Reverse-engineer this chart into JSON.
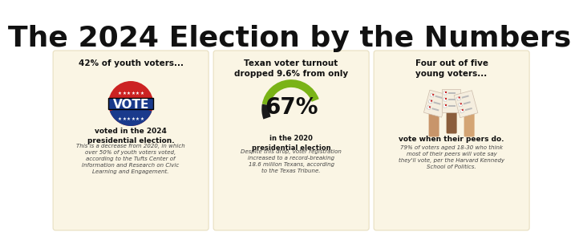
{
  "title": "The 2024 Election by the Numbers",
  "title_fontsize": 26,
  "bg_color": "#ffffff",
  "card_bg": "#faf5e4",
  "card_border": "#e8dfc0",
  "panel1": {
    "header": "42% of youth voters...",
    "bold_text": "voted in the 2024\npresidential election.",
    "body_text": "This is a decrease from 2020, in which\nover 50% of youth voters voted,\naccording to the Tufts Center of\nInformation and Research on Civic\nLearning and Engagement."
  },
  "panel2": {
    "header": "Texan voter turnout\ndropped 9.6% from only",
    "big_number": "67%",
    "sub_number": "in the 2020\npresidential election",
    "body_text": "Despite this drop, voter registration\nincreased to a record-breaking\n18.6 million Texans, according\nto the Texas Tribune.",
    "arc_color_green": "#7ab317",
    "arc_color_dark": "#1a1a1a"
  },
  "panel3": {
    "header": "Four out of five\nyoung voters...",
    "bold_text": "vote when their peers do.",
    "body_text": "79% of voters aged 18-30 who think\nmost of their peers will vote say\nthey'll vote, per the Harvard Kennedy\nSchool of Politics."
  },
  "vote_red": "#cc2222",
  "vote_blue": "#1a3a8c",
  "vote_white": "#ffffff",
  "star_color": "#ffffff"
}
